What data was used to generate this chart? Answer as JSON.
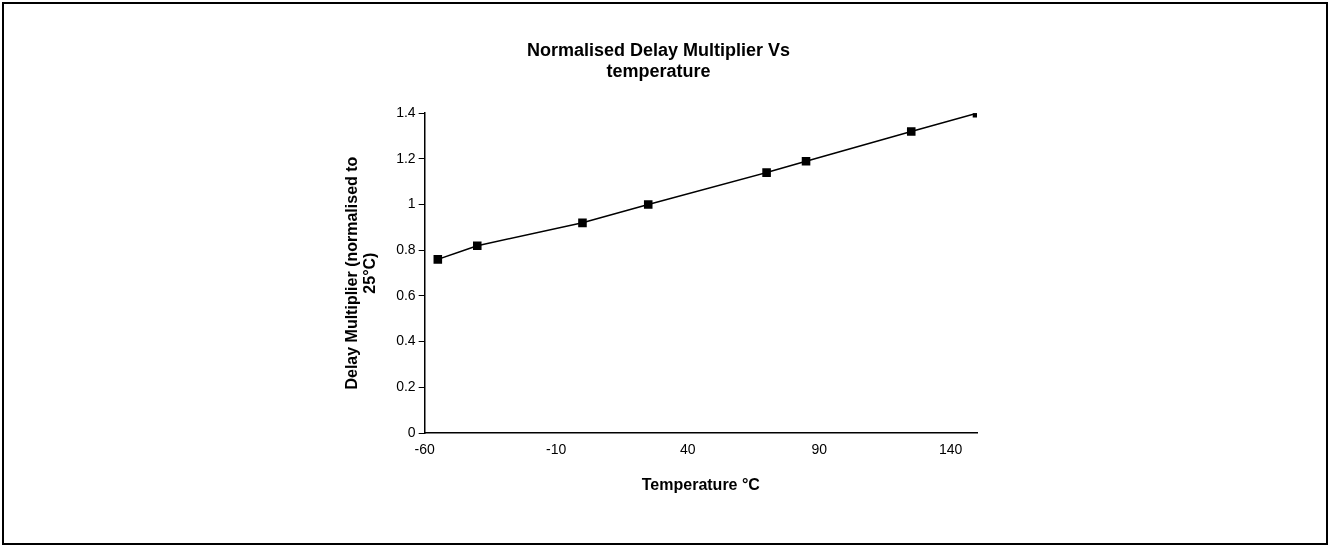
{
  "chart_data": {
    "type": "line",
    "title": "Normalised Delay Multiplier Vs temperature",
    "xlabel": "Temperature °C",
    "ylabel": "Delay Multiplier (normalised to 25°C)",
    "x": [
      -55,
      -40,
      0,
      25,
      70,
      85,
      125,
      150
    ],
    "series": [
      {
        "color": "#000000",
        "values": [
          0.76,
          0.82,
          0.92,
          1.0,
          1.14,
          1.19,
          1.32,
          1.4
        ]
      }
    ],
    "xlim": [
      -60,
      150
    ],
    "xticks": [
      -60,
      -10,
      40,
      90,
      140
    ],
    "ylim": [
      0,
      1.4
    ],
    "yticks": [
      0,
      0.2,
      0.4,
      0.6,
      0.8,
      1,
      1.2,
      1.4
    ],
    "grid": false,
    "legend": false,
    "marker": "square",
    "line_style": "solid"
  }
}
